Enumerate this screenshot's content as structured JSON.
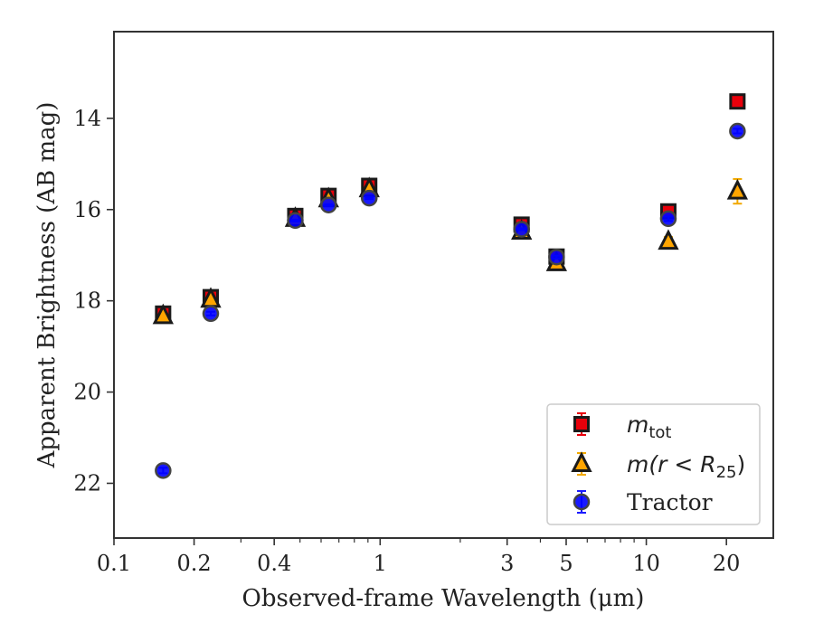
{
  "chart_data": {
    "type": "scatter",
    "title": "",
    "xlabel": "Observed-frame Wavelength (μm)",
    "ylabel": "Apparent Brightness (AB mag)",
    "xscale": "log",
    "xlim": [
      0.1,
      30
    ],
    "ylim": [
      23.2,
      12.1
    ],
    "y_inverted": true,
    "x_tick_labels": [
      "0.1",
      "0.2",
      "0.4",
      "1",
      "3",
      "5",
      "10",
      "20"
    ],
    "x_tick_values": [
      0.1,
      0.2,
      0.4,
      1,
      3,
      5,
      10,
      20
    ],
    "y_tick_labels": [
      "14",
      "16",
      "18",
      "20",
      "22"
    ],
    "y_tick_values": [
      14,
      16,
      18,
      20,
      22
    ],
    "grid": false,
    "legend_position": "lower-right",
    "series": [
      {
        "name": "m_tot",
        "legend_label": {
          "base": "m",
          "sub": "tot"
        },
        "marker": "square",
        "color": "#e8000b",
        "errcolor": "#e8000b",
        "x": [
          0.153,
          0.231,
          0.48,
          0.64,
          0.91,
          3.4,
          4.6,
          12.1,
          22.0
        ],
        "y": [
          18.28,
          17.92,
          16.14,
          15.7,
          15.48,
          16.33,
          17.03,
          16.04,
          13.63
        ],
        "err": [
          0.05,
          0.04,
          0.02,
          0.02,
          0.02,
          0.03,
          0.05,
          0.05,
          0.05
        ]
      },
      {
        "name": "m(r < R25)",
        "legend_label": {
          "base": "m(r < R",
          "sub": "25",
          "tail": ")"
        },
        "marker": "triangle",
        "color": "#ffa500",
        "errcolor": "#f1a800",
        "x": [
          0.153,
          0.231,
          0.48,
          0.64,
          0.91,
          3.4,
          4.6,
          12.1,
          22.0
        ],
        "y": [
          18.33,
          17.97,
          16.2,
          15.77,
          15.55,
          16.48,
          17.17,
          16.7,
          15.6
        ],
        "err": [
          0.05,
          0.05,
          0.02,
          0.02,
          0.02,
          0.03,
          0.05,
          0.1,
          0.27
        ]
      },
      {
        "name": "Tractor",
        "legend_label": {
          "base": "Tractor"
        },
        "marker": "circle",
        "color": "#0000ff",
        "errcolor": "#1b1bff",
        "x": [
          0.153,
          0.231,
          0.48,
          0.64,
          0.91,
          3.4,
          4.6,
          12.1,
          22.0
        ],
        "y": [
          21.72,
          18.28,
          16.24,
          15.9,
          15.75,
          16.43,
          17.04,
          16.2,
          14.28
        ],
        "err": [
          0.06,
          0.04,
          0.02,
          0.02,
          0.02,
          0.02,
          0.03,
          0.05,
          0.05
        ]
      }
    ]
  }
}
